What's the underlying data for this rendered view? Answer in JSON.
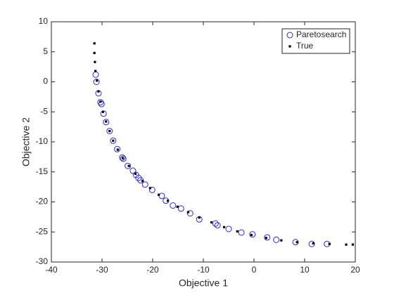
{
  "chart_data": {
    "type": "scatter",
    "xlabel": "Objective 1",
    "ylabel": "Objective 2",
    "xlim": [
      -40,
      20
    ],
    "ylim": [
      -30,
      10
    ],
    "xticks": [
      -40,
      -30,
      -20,
      -10,
      0,
      10,
      20
    ],
    "yticks": [
      -30,
      -25,
      -20,
      -15,
      -10,
      -5,
      0,
      5,
      10
    ],
    "legend": "upper right",
    "series": [
      {
        "name": "Paretosearch",
        "color": "#2b2bd1",
        "marker": "circle",
        "x": [
          -31.25,
          -31.1,
          -30.7,
          -30.3,
          -30.1,
          -29.7,
          -29.2,
          -28.5,
          -27.8,
          -27.0,
          -26.0,
          -25.8,
          -24.9,
          -23.9,
          -23.3,
          -22.8,
          -22.4,
          -21.5,
          -20.1,
          -18.2,
          -17.4,
          -16.0,
          -14.4,
          -12.6,
          -10.8,
          -7.6,
          -7.2,
          -5.0,
          -2.5,
          -0.3,
          2.6,
          4.4,
          8.2,
          11.4,
          14.4
        ],
        "values": [
          1.2,
          0.0,
          -1.9,
          -3.4,
          -3.7,
          -5.3,
          -6.7,
          -8.2,
          -9.8,
          -11.2,
          -12.6,
          -12.8,
          -14.0,
          -14.8,
          -15.5,
          -16.0,
          -16.4,
          -17.1,
          -18.0,
          -19.0,
          -19.8,
          -20.6,
          -21.1,
          -21.9,
          -22.9,
          -23.6,
          -23.9,
          -24.5,
          -25.1,
          -25.4,
          -25.9,
          -26.3,
          -26.7,
          -27.0,
          -27.0
        ]
      },
      {
        "name": "True",
        "color": "#000000",
        "marker": "square",
        "x": [
          -31.5,
          -31.5,
          -31.4,
          -31.3,
          -31.0,
          -30.7,
          -30.3,
          -29.8,
          -29.2,
          -28.5,
          -27.8,
          -26.9,
          -25.9,
          -24.7,
          -23.4,
          -22.0,
          -20.5,
          -18.8,
          -17.0,
          -15.1,
          -13.0,
          -10.8,
          -8.4,
          -5.9,
          -3.3,
          -0.5,
          2.4,
          5.4,
          8.5,
          11.7,
          14.9,
          18.2,
          19.5
        ],
        "values": [
          6.4,
          4.8,
          3.3,
          1.8,
          0.2,
          -1.6,
          -3.3,
          -5.0,
          -6.6,
          -8.2,
          -9.8,
          -11.3,
          -12.7,
          -14.0,
          -15.3,
          -16.5,
          -17.7,
          -18.8,
          -19.8,
          -20.8,
          -21.7,
          -22.6,
          -23.4,
          -24.2,
          -24.9,
          -25.5,
          -26.0,
          -26.4,
          -26.7,
          -26.9,
          -27.0,
          -27.1,
          -27.1
        ]
      }
    ]
  }
}
